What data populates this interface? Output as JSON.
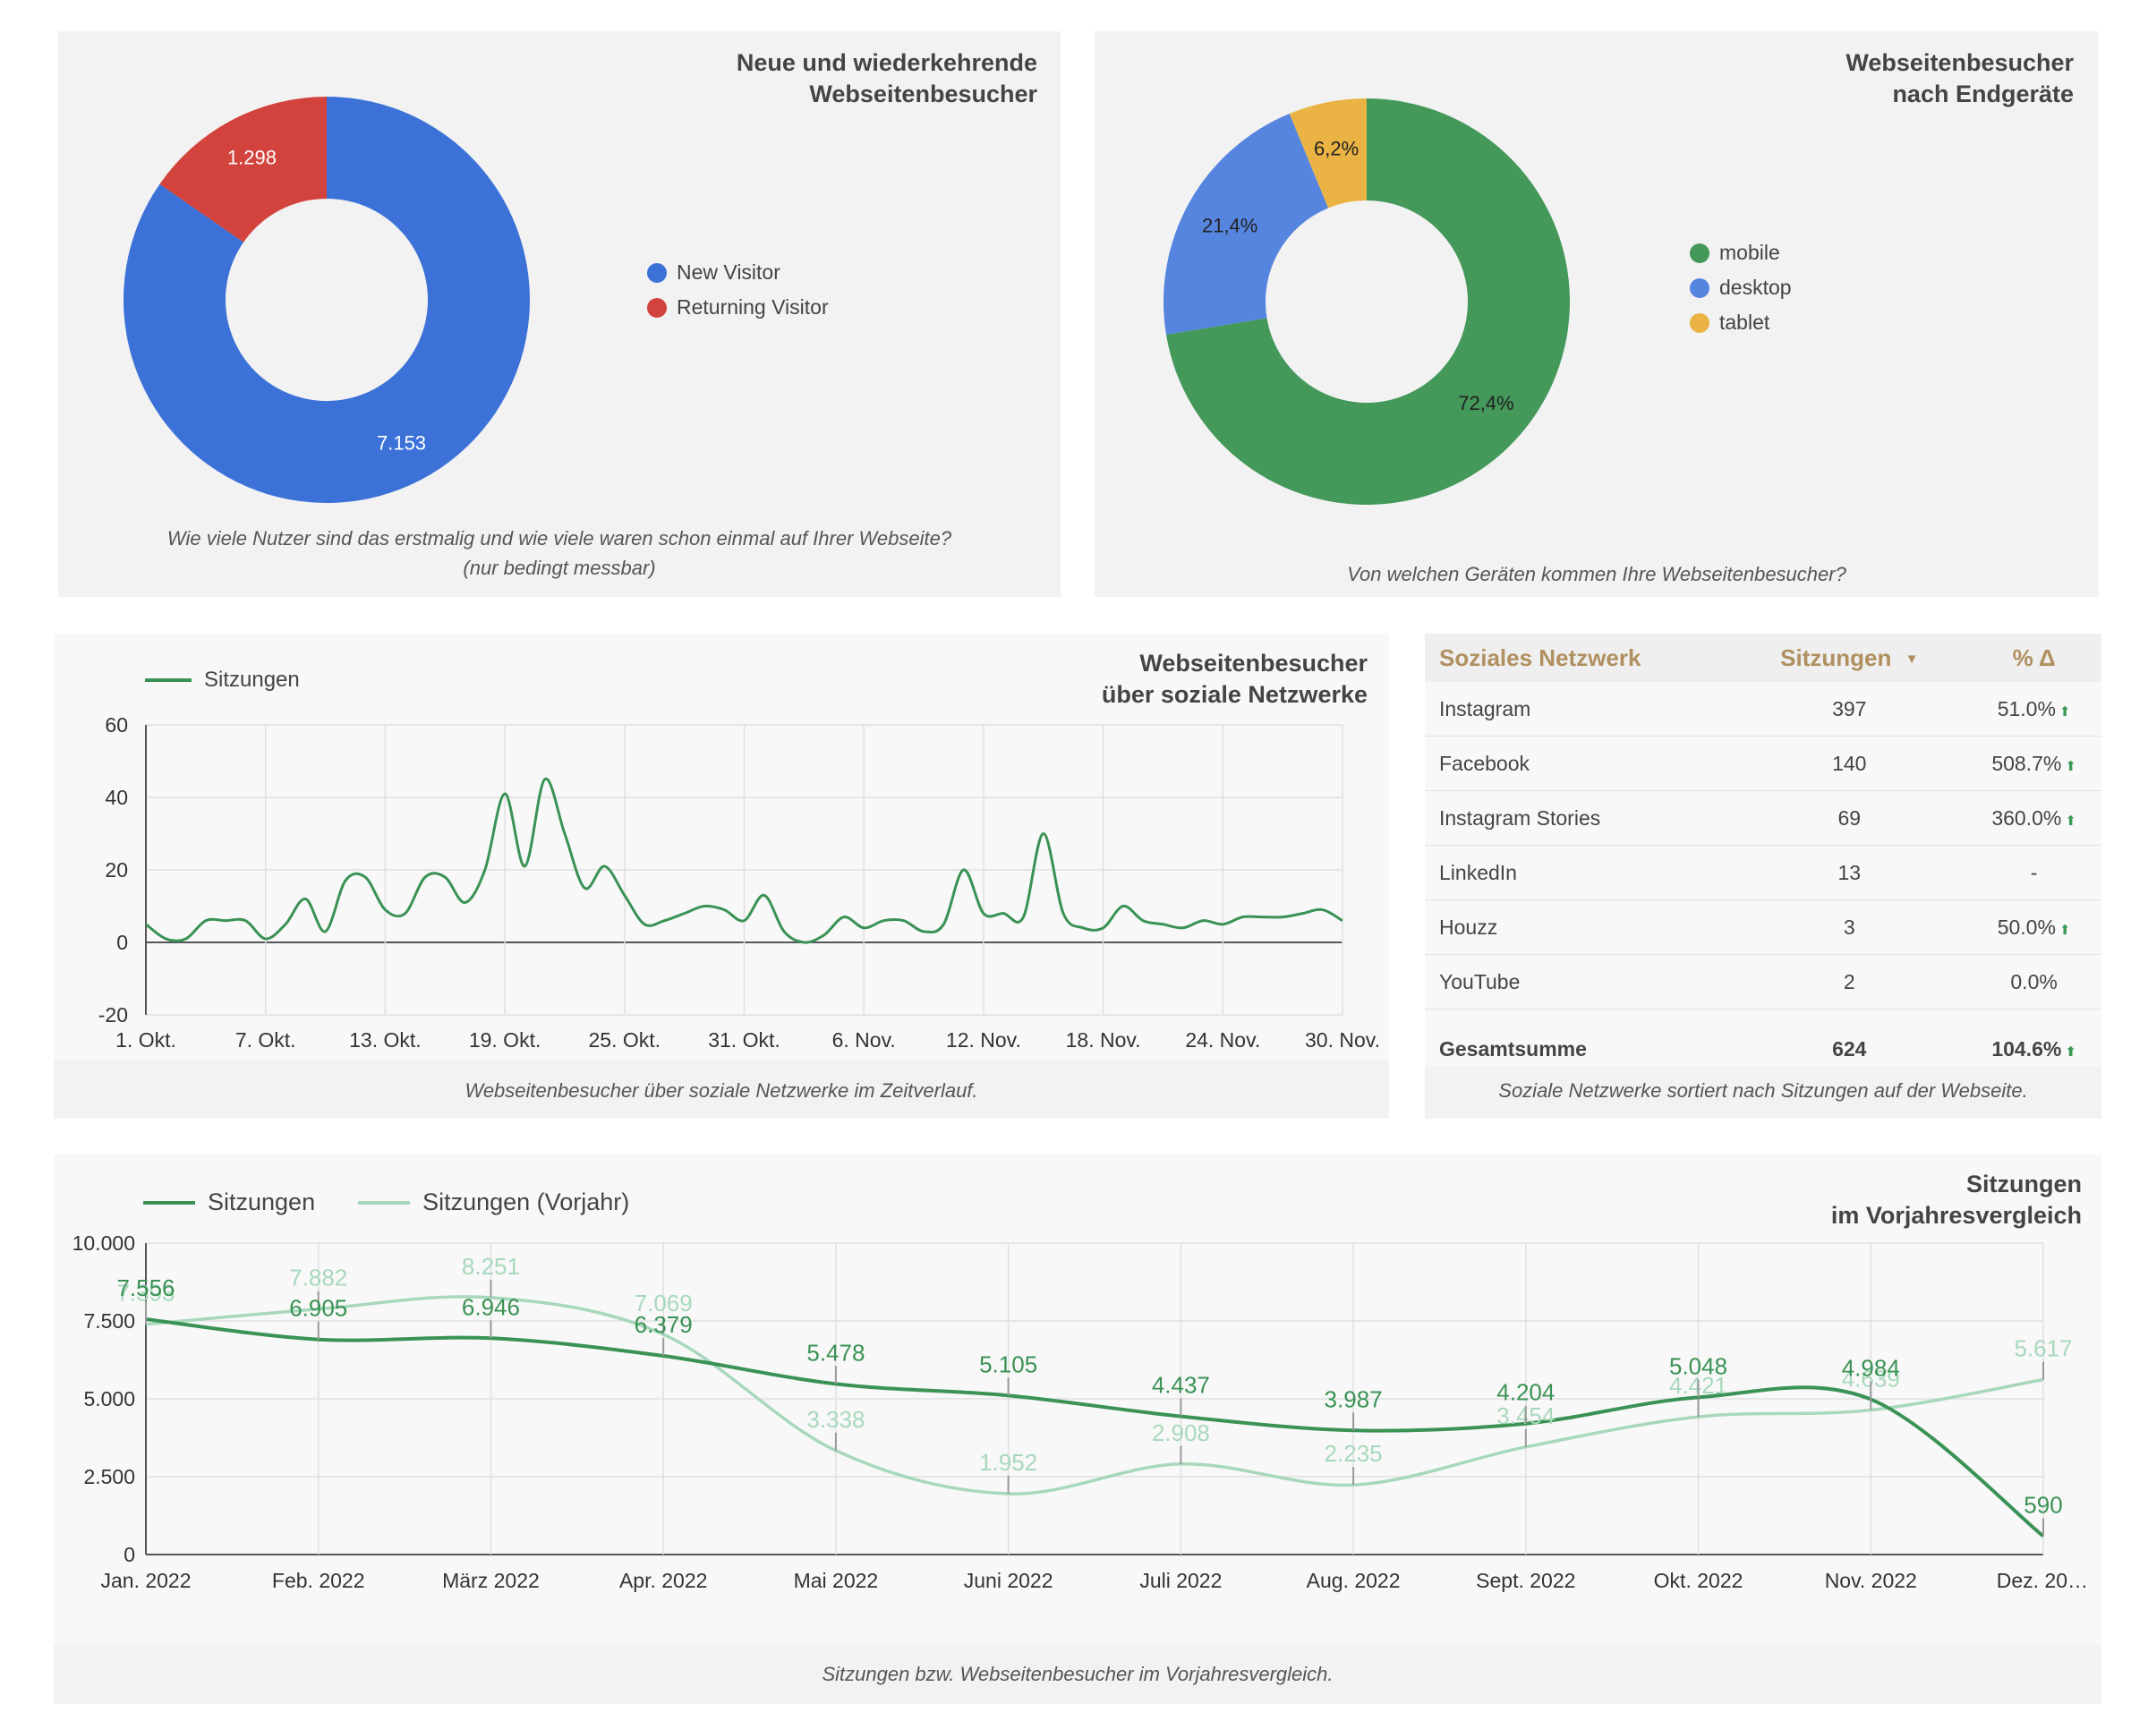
{
  "panel_new_returning": {
    "title_line1": "Neue und wiederkehrende",
    "title_line2": "Webseitenbesucher",
    "caption_line1": "Wie viele Nutzer sind das erstmalig und wie viele waren schon einmal auf Ihrer Webseite?",
    "caption_line2": "(nur bedingt messbar)"
  },
  "panel_devices": {
    "title_line1": "Webseitenbesucher",
    "title_line2": "nach Endgeräte",
    "caption": "Von welchen Geräten kommen Ihre Webseitenbesucher?"
  },
  "panel_social_line": {
    "title_line1": "Webseitenbesucher",
    "title_line2": "über soziale Netzwerke",
    "caption": "Webseitenbesucher über soziale Netzwerke im Zeitverlauf."
  },
  "panel_social_table": {
    "header": {
      "network": "Soziales Netzwerk",
      "sessions": "Sitzungen",
      "sort_icon": "▼",
      "delta": "% Δ"
    },
    "rows": [
      {
        "network": "Instagram",
        "sessions": "397",
        "delta": "51.0%",
        "up": "⬆"
      },
      {
        "network": "Facebook",
        "sessions": "140",
        "delta": "508.7%",
        "up": "⬆"
      },
      {
        "network": "Instagram Stories",
        "sessions": "69",
        "delta": "360.0%",
        "up": "⬆"
      },
      {
        "network": "LinkedIn",
        "sessions": "13",
        "delta": "-",
        "up": ""
      },
      {
        "network": "Houzz",
        "sessions": "3",
        "delta": "50.0%",
        "up": "⬆"
      },
      {
        "network": "YouTube",
        "sessions": "2",
        "delta": "0.0%",
        "up": ""
      }
    ],
    "total": {
      "network": "Gesamtsumme",
      "sessions": "624",
      "delta": "104.6%",
      "up": "⬆"
    },
    "caption": "Soziale Netzwerke sortiert nach Sitzungen auf der Webseite."
  },
  "panel_yoy": {
    "title_line1": "Sitzungen",
    "title_line2": "im Vorjahresvergleich",
    "caption": "Sitzungen bzw. Webseitenbesucher im Vorjahresvergleich."
  },
  "colors": {
    "blue": "#3c72d8",
    "red": "#d2433d",
    "green": "#43985a",
    "lightblue": "#5685e0",
    "yellow": "#eab343",
    "line_green": "#3a9255",
    "line_light": "#a8d8bc",
    "panel_bg": "#f2f2f2"
  },
  "chart_data": [
    {
      "type": "pie",
      "donut": true,
      "title": "Neue und wiederkehrende Webseitenbesucher",
      "labels": [
        "New Visitor",
        "Returning Visitor"
      ],
      "values": [
        7153,
        1298
      ],
      "data_labels": [
        "7.153",
        "1.298"
      ],
      "colors": [
        "#3c72d8",
        "#d2433d"
      ],
      "legend": "right"
    },
    {
      "type": "pie",
      "donut": true,
      "title": "Webseitenbesucher nach Endgeräte",
      "labels": [
        "mobile",
        "desktop",
        "tablet"
      ],
      "values": [
        72.4,
        21.4,
        6.2
      ],
      "data_labels": [
        "72,4%",
        "21,4%",
        "6,2%"
      ],
      "colors": [
        "#43985a",
        "#5685e0",
        "#eab343"
      ],
      "legend": "right"
    },
    {
      "type": "line",
      "title": "Webseitenbesucher über soziale Netzwerke",
      "series": [
        {
          "name": "Sitzungen",
          "values": [
            5,
            1,
            1,
            6,
            6,
            6,
            1,
            5,
            12,
            3,
            17,
            18,
            9,
            8,
            18,
            18,
            11,
            20,
            41,
            21,
            45,
            30,
            15,
            21,
            13,
            5,
            6,
            8,
            10,
            9,
            6,
            13,
            3,
            0,
            2,
            7,
            4,
            6,
            6,
            3,
            5,
            20,
            8,
            8,
            7,
            30,
            8,
            4,
            4,
            10,
            6,
            5,
            4,
            6,
            5,
            7,
            7,
            7,
            8,
            9,
            6
          ]
        }
      ],
      "categories": [
        "1. Okt.",
        "2. Okt.",
        "3. Okt.",
        "4. Okt.",
        "5. Okt.",
        "6. Okt.",
        "7. Okt.",
        "8. Okt.",
        "9. Okt.",
        "10. Okt.",
        "11. Okt.",
        "12. Okt.",
        "13. Okt.",
        "14. Okt.",
        "15. Okt.",
        "16. Okt.",
        "17. Okt.",
        "18. Okt.",
        "19. Okt.",
        "20. Okt.",
        "21. Okt.",
        "22. Okt.",
        "23. Okt.",
        "24. Okt.",
        "25. Okt.",
        "26. Okt.",
        "27. Okt.",
        "28. Okt.",
        "29. Okt.",
        "30. Okt.",
        "31. Okt.",
        "1. Nov.",
        "2. Nov.",
        "3. Nov.",
        "4. Nov.",
        "5. Nov.",
        "6. Nov.",
        "7. Nov.",
        "8. Nov.",
        "9. Nov.",
        "10. Nov.",
        "11. Nov.",
        "12. Nov.",
        "13. Nov.",
        "14. Nov.",
        "15. Nov.",
        "16. Nov.",
        "17. Nov.",
        "18. Nov.",
        "19. Nov.",
        "20. Nov.",
        "21. Nov.",
        "22. Nov.",
        "23. Nov.",
        "24. Nov.",
        "25. Nov.",
        "26. Nov.",
        "27. Nov.",
        "28. Nov.",
        "29. Nov.",
        "30. Nov."
      ],
      "x_tick_labels": [
        "1. Okt.",
        "7. Okt.",
        "13. Okt.",
        "19. Okt.",
        "25. Okt.",
        "31. Okt.",
        "6. Nov.",
        "12. Nov.",
        "18. Nov.",
        "24. Nov.",
        "30. Nov."
      ],
      "y_ticks": [
        "60",
        "40",
        "20",
        "0",
        "-20"
      ],
      "ylim": [
        -20,
        60
      ],
      "grid": true,
      "legend": "top-left"
    },
    {
      "type": "line",
      "title": "Sitzungen im Vorjahresvergleich",
      "categories": [
        "Jan. 2022",
        "Feb. 2022",
        "März 2022",
        "Apr. 2022",
        "Mai 2022",
        "Juni 2022",
        "Juli 2022",
        "Aug. 2022",
        "Sept. 2022",
        "Okt. 2022",
        "Nov. 2022",
        "Dez. 20…"
      ],
      "series": [
        {
          "name": "Sitzungen",
          "values": [
            7556,
            6905,
            6946,
            6379,
            5478,
            5105,
            4437,
            3987,
            4204,
            5048,
            4984,
            590
          ],
          "labels": [
            "7.556",
            "6.905",
            "6.946",
            "6.379",
            "5.478",
            "5.105",
            "4.437",
            "3.987",
            "4.204",
            "5.048",
            "4.984",
            "590"
          ]
        },
        {
          "name": "Sitzungen (Vorjahr)",
          "values": [
            7393,
            7882,
            8251,
            7069,
            3338,
            1952,
            2908,
            2235,
            3454,
            4421,
            4639,
            5617
          ],
          "labels": [
            "7.393",
            "7.882",
            "8.251",
            "7.069",
            "3.338",
            "1.952",
            "2.908",
            "2.235",
            "3.454",
            "4.421",
            "4.639",
            "5.617"
          ]
        }
      ],
      "y_ticks": [
        "10.000",
        "7.500",
        "5.000",
        "2.500",
        "0"
      ],
      "ylim": [
        0,
        10000
      ],
      "grid": true,
      "legend": "top-left"
    }
  ]
}
